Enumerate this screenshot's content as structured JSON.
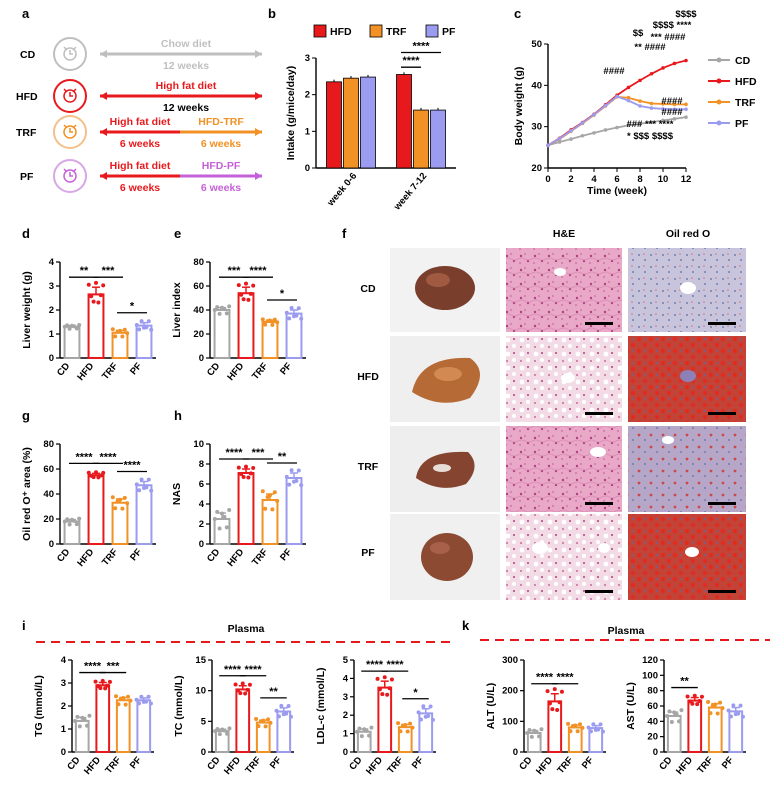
{
  "colors": {
    "CD": "#a6a6a6",
    "HFD": "#e8191c",
    "TRF": "#f29125",
    "PF": "#9b9bf0",
    "PFdiet": "#c561d8"
  },
  "panel_letters": [
    "a",
    "b",
    "c",
    "d",
    "e",
    "f",
    "g",
    "h",
    "i",
    "k"
  ],
  "panel_a": {
    "groups": [
      {
        "name": "CD",
        "top": "Chow diet",
        "bottom": "12 weeks"
      },
      {
        "name": "HFD",
        "top": "High fat diet",
        "bottom": "12 weeks"
      },
      {
        "name": "TRF",
        "top": "High fat diet",
        "bottom": "6 weeks",
        "top2": "HFD-TRF",
        "bottom2": "6 weeks"
      },
      {
        "name": "PF",
        "top": "High fat diet",
        "bottom": "6 weeks",
        "top2": "HFD-PF",
        "bottom2": "6 weeks"
      }
    ],
    "clock_icon": "alarm-clock-icon"
  },
  "panel_f": {
    "col_headers": [
      "H&E",
      "Oil red O"
    ],
    "row_labels": [
      "CD",
      "HFD",
      "TRF",
      "PF"
    ]
  },
  "plasma_label": "Plasma",
  "chart_data": [
    {
      "id": "b",
      "type": "bar",
      "categories": [
        "week 0-6",
        "week 7-12"
      ],
      "ylabel": "Intake (g/mice/day)",
      "ylim": [
        0,
        3
      ],
      "yticks": [
        0,
        1,
        2,
        3
      ],
      "legend": [
        "HFD",
        "TRF",
        "PF"
      ],
      "series": [
        {
          "name": "HFD",
          "values": [
            2.35,
            2.55
          ]
        },
        {
          "name": "TRF",
          "values": [
            2.45,
            1.58
          ]
        },
        {
          "name": "PF",
          "values": [
            2.48,
            1.58
          ]
        }
      ],
      "sig": [
        {
          "label": "****",
          "from": "HFD",
          "to": "TRF",
          "cat": 1
        },
        {
          "label": "****",
          "from": "HFD",
          "to": "PF",
          "cat": 1
        }
      ]
    },
    {
      "id": "c",
      "type": "line",
      "xlabel": "Time (week)",
      "ylabel": "Body weight (g)",
      "xlim": [
        0,
        12
      ],
      "ylim": [
        20,
        50
      ],
      "xticks": [
        0,
        2,
        4,
        6,
        8,
        10,
        12
      ],
      "yticks": [
        20,
        30,
        40,
        50
      ],
      "x": [
        0,
        1,
        2,
        3,
        4,
        5,
        6,
        7,
        8,
        9,
        10,
        11,
        12
      ],
      "series": [
        {
          "name": "CD",
          "values": [
            25.5,
            26.3,
            27,
            27.8,
            28.5,
            29.2,
            29.8,
            30.3,
            30.7,
            31.1,
            31.5,
            31.9,
            32.3
          ]
        },
        {
          "name": "HFD",
          "values": [
            25.5,
            27.2,
            29.2,
            31,
            33,
            35.3,
            37.6,
            39.5,
            41.2,
            42.8,
            44.2,
            45.3,
            46
          ]
        },
        {
          "name": "TRF",
          "values": [
            25.5,
            27,
            28.9,
            30.8,
            32.8,
            35,
            37.2,
            37,
            36.2,
            35.6,
            35.5,
            35.4,
            35.4
          ]
        },
        {
          "name": "PF",
          "values": [
            25.5,
            27.1,
            29,
            30.9,
            32.9,
            35.1,
            37.3,
            36.3,
            35,
            34.5,
            34.3,
            34.2,
            34.2
          ]
        }
      ],
      "annotations_above": [
        "$$$$",
        "$$$$ ****",
        "*** ####",
        "$$",
        "** ####",
        "####"
      ],
      "annotations_below": [
        "####",
        "####",
        "### *** ****",
        "* $$$ $$$$"
      ]
    },
    {
      "id": "d",
      "type": "bar",
      "categories": [
        "CD",
        "HFD",
        "TRF",
        "PF"
      ],
      "ylabel": "Liver weight (g)",
      "ylim": [
        0,
        4
      ],
      "yticks": [
        0,
        1,
        2,
        3,
        4
      ],
      "values": [
        1.3,
        2.65,
        1.05,
        1.35
      ],
      "errors": [
        0.05,
        0.3,
        0.1,
        0.12
      ],
      "sig": [
        {
          "label": "**",
          "a": 0,
          "b": 1
        },
        {
          "label": "*",
          "a": 2,
          "b": 3
        },
        {
          "label": "***",
          "a": 1,
          "b": 2
        }
      ]
    },
    {
      "id": "e",
      "type": "bar",
      "categories": [
        "CD",
        "HFD",
        "TRF",
        "PF"
      ],
      "ylabel": "Liver index",
      "ylim": [
        0,
        80
      ],
      "yticks": [
        0,
        20,
        40,
        60,
        80
      ],
      "values": [
        40,
        54,
        30,
        37
      ],
      "errors": [
        2,
        5,
        1.5,
        3
      ],
      "sig": [
        {
          "label": "***",
          "a": 0,
          "b": 1
        },
        {
          "label": "*",
          "a": 2,
          "b": 3
        },
        {
          "label": "****",
          "a": 1,
          "b": 2
        }
      ]
    },
    {
      "id": "g",
      "type": "bar",
      "categories": [
        "CD",
        "HFD",
        "TRF",
        "PF"
      ],
      "ylabel": "Oil red O⁺ area (%)",
      "ylim": [
        0,
        80
      ],
      "yticks": [
        0,
        20,
        40,
        60,
        80
      ],
      "values": [
        18,
        55,
        33,
        47
      ],
      "errors": [
        1.5,
        1.5,
        3,
        3
      ],
      "sig": [
        {
          "label": "****",
          "a": 0,
          "b": 1
        },
        {
          "label": "****",
          "a": 2,
          "b": 3
        },
        {
          "label": "****",
          "a": 1,
          "b": 2
        }
      ]
    },
    {
      "id": "h",
      "type": "bar",
      "categories": [
        "CD",
        "HFD",
        "TRF",
        "PF"
      ],
      "ylabel": "NAS",
      "ylim": [
        0,
        10
      ],
      "yticks": [
        0,
        2,
        4,
        6,
        8,
        10
      ],
      "values": [
        2.5,
        7.1,
        4.4,
        6.6
      ],
      "errors": [
        0.6,
        0.4,
        0.6,
        0.5
      ],
      "sig": [
        {
          "label": "****",
          "a": 0,
          "b": 1
        },
        {
          "label": "**",
          "a": 2,
          "b": 3
        },
        {
          "label": "***",
          "a": 1,
          "b": 2
        }
      ]
    },
    {
      "id": "i1",
      "type": "bar",
      "categories": [
        "CD",
        "HFD",
        "TRF",
        "PF"
      ],
      "ylabel": "TG (mmol/L)",
      "ylim": [
        0,
        4
      ],
      "yticks": [
        0,
        1,
        2,
        3,
        4
      ],
      "values": [
        1.35,
        2.9,
        2.25,
        2.25
      ],
      "errors": [
        0.15,
        0.12,
        0.12,
        0.1
      ],
      "sig": [
        {
          "label": "****",
          "a": 0,
          "b": 1
        },
        {
          "label": "***",
          "a": 1,
          "b": 2
        }
      ]
    },
    {
      "id": "i2",
      "type": "bar",
      "categories": [
        "CD",
        "HFD",
        "TRF",
        "PF"
      ],
      "ylabel": "TC (mmol/L)",
      "ylim": [
        0,
        15
      ],
      "yticks": [
        0,
        5,
        10,
        15
      ],
      "values": [
        3.4,
        10.2,
        4.8,
        6.6
      ],
      "errors": [
        0.3,
        0.6,
        0.4,
        0.6
      ],
      "sig": [
        {
          "label": "****",
          "a": 0,
          "b": 1
        },
        {
          "label": "**",
          "a": 2,
          "b": 3
        },
        {
          "label": "****",
          "a": 1,
          "b": 2
        }
      ]
    },
    {
      "id": "i3",
      "type": "bar",
      "categories": [
        "CD",
        "HFD",
        "TRF",
        "PF"
      ],
      "ylabel": "LDL-c (mmol/L)",
      "ylim": [
        0,
        5
      ],
      "yticks": [
        0,
        1,
        2,
        3,
        4,
        5
      ],
      "values": [
        1.1,
        3.5,
        1.35,
        2.1
      ],
      "errors": [
        0.15,
        0.35,
        0.15,
        0.25
      ],
      "sig": [
        {
          "label": "****",
          "a": 0,
          "b": 1
        },
        {
          "label": "*",
          "a": 2,
          "b": 3
        },
        {
          "label": "****",
          "a": 1,
          "b": 2
        }
      ]
    },
    {
      "id": "k1",
      "type": "bar",
      "categories": [
        "CD",
        "HFD",
        "TRF",
        "PF"
      ],
      "ylabel": "ALT (U/L)",
      "ylim": [
        0,
        300
      ],
      "yticks": [
        0,
        100,
        200,
        300
      ],
      "values": [
        62,
        165,
        80,
        78
      ],
      "errors": [
        8,
        25,
        8,
        8
      ],
      "sig": [
        {
          "label": "****",
          "a": 0,
          "b": 1
        },
        {
          "label": "****",
          "a": 1,
          "b": 2
        }
      ]
    },
    {
      "id": "k2",
      "type": "bar",
      "categories": [
        "CD",
        "HFD",
        "TRF",
        "PF"
      ],
      "ylabel": "AST (U/L)",
      "ylim": [
        0,
        120
      ],
      "yticks": [
        0,
        20,
        40,
        60,
        80,
        100,
        120
      ],
      "values": [
        47,
        67,
        58,
        53
      ],
      "errors": [
        5,
        4,
        5,
        5
      ],
      "sig": [
        {
          "label": "**",
          "a": 0,
          "b": 1
        }
      ]
    }
  ]
}
